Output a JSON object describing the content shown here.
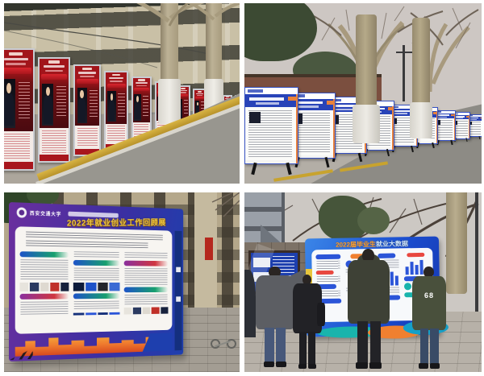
{
  "collage": {
    "title": "campus employment exhibition photo collage",
    "background": "#ffffff",
    "grid": "2x2"
  },
  "photo1": {
    "label": "row of red roll-up banners with student portraits along campus building street",
    "banner_count": 11,
    "colors": {
      "banner_red": "#a8161d",
      "banner_dark": "#4a0a10",
      "frame": "#c9ccd2",
      "building": "#c9c0a6",
      "curb_yellow": "#c8a32e",
      "road": "#98968f"
    }
  },
  "photo2": {
    "label": "row of white poster boards with blue headers under bare plane trees",
    "board_count": 9,
    "colors": {
      "header_blue": "#2843b8",
      "accent_orange": "#e8823c",
      "sky": "#cdc7c3",
      "road": "#8d8b85",
      "trunk": "#b5a989"
    }
  },
  "photo3": {
    "label": "large purple-blue display wall with gold title and orange cityscape base",
    "org_text": "西安交通大学",
    "title": "2022年就业创业工作回顾展",
    "colors": {
      "wall_purple": "#6a2f9e",
      "wall_blue": "#1e3fae",
      "title_gold": "#efc83f",
      "panel": "#f7f5f1",
      "city_orange": "#ef7a2e"
    }
  },
  "photo4": {
    "label": "four people viewing blue employment data board outdoors",
    "title_left": "2022届毕业生",
    "title_right": "就业大数据",
    "colors": {
      "board_blue": "#1b4fd0",
      "panel": "#f7f9fb",
      "teal": "#19b4ac",
      "orange": "#f08030"
    },
    "people": [
      {
        "type": "coat",
        "jacket": "#5c5e63",
        "pants": "#47587a",
        "note": "gray coat, arm raised with yellow flyer"
      },
      {
        "type": "puffer",
        "jacket": "#222226",
        "pants": "#1e1e22",
        "note": "black puffer with shoulder bag"
      },
      {
        "type": "hooded-puffer",
        "jacket": "#3e4136",
        "pants": "#232327",
        "note": "dark olive hooded puffer"
      },
      {
        "type": "camo",
        "jacket": "#49503c",
        "pants": "#394b66",
        "back_text": "68",
        "note": "camouflage jacket with 68 print"
      }
    ]
  }
}
